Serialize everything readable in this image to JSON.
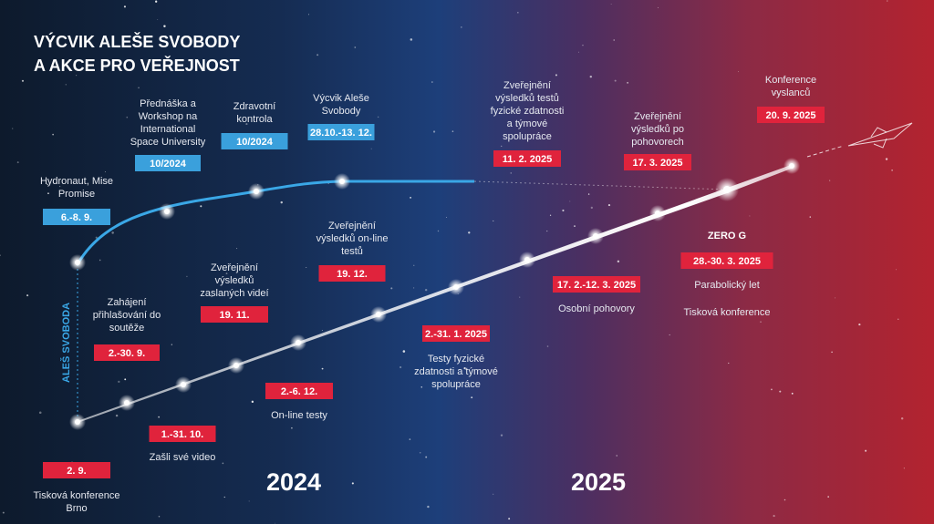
{
  "title_lines": [
    "VÝCVIK ALEŠE SVOBODY",
    "A AKCE PRO VEŘEJNOST"
  ],
  "vertical_label": "ALEŠ SVOBODA",
  "years": [
    "2024",
    "2025"
  ],
  "blue_events": [
    {
      "label_lines": [
        "Hydronaut, Mise",
        "Promise"
      ],
      "date": "6.-8. 9."
    },
    {
      "label_lines": [
        "Přednáška a",
        "Workshop na",
        "International",
        "Space University"
      ],
      "date": "10/2024"
    },
    {
      "label_lines": [
        "Zdravotní",
        "kontrola"
      ],
      "date": "10/2024"
    },
    {
      "label_lines": [
        "Výcvik Aleše",
        "Svobody"
      ],
      "date": "28.10.-13. 12."
    }
  ],
  "red_events": [
    {
      "date": "2. 9.",
      "label_lines": [
        "Tisková konference",
        "Brno"
      ]
    },
    {
      "date": "2.-30. 9.",
      "label_lines": [
        "Zahájení",
        "přihlašování do",
        "soutěže"
      ]
    },
    {
      "date": "1.-31. 10.",
      "label_lines": [
        "Zašli své video"
      ]
    },
    {
      "date": "19. 11.",
      "label_lines": [
        "Zveřejnění",
        "výsledků",
        "zaslaných videí"
      ]
    },
    {
      "date": "2.-6. 12.",
      "label_lines": [
        "On-line testy"
      ]
    },
    {
      "date": "19. 12.",
      "label_lines": [
        "Zveřejnění",
        "výsledků on-line",
        "testů"
      ]
    },
    {
      "date": "2.-31. 1. 2025",
      "label_lines": [
        "Testy fyzické",
        "zdatnosti a týmové",
        "spolupráce"
      ]
    },
    {
      "date": "11. 2. 2025",
      "label_lines": [
        "Zveřejnění",
        "výsledků testů",
        "fyzické zdatnosti",
        "a týmové",
        "spolupráce"
      ]
    },
    {
      "date": "17. 2.-12. 3. 2025",
      "label_lines": [
        "Osobní pohovory"
      ]
    },
    {
      "date": "17. 3. 2025",
      "label_lines": [
        "Zveřejnění",
        "výsledků po",
        "pohovorech"
      ]
    },
    {
      "heading": "ZERO G",
      "date": "28.-30. 3. 2025",
      "label_lines": [
        "Parabolický let",
        "Tisková konference"
      ]
    },
    {
      "date": "20. 9. 2025",
      "label_lines": [
        "Konference",
        "vyslanců"
      ]
    }
  ]
}
